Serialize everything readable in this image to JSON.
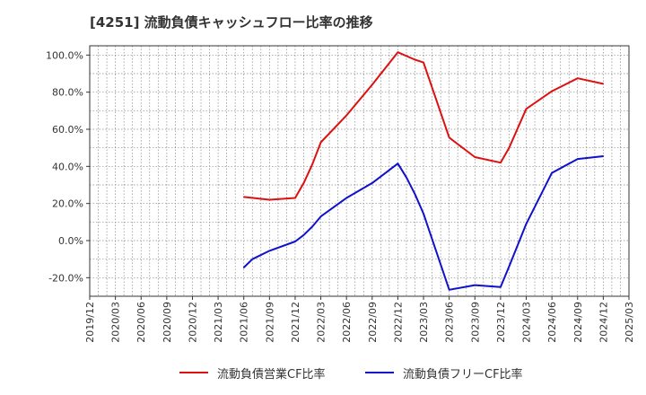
{
  "chart_data": {
    "type": "line",
    "title": "[4251]  流動負債キャッシュフロー比率の推移",
    "x_ticks": [
      "2019/12",
      "2020/03",
      "2020/06",
      "2020/09",
      "2020/12",
      "2021/03",
      "2021/06",
      "2021/09",
      "2021/12",
      "2022/03",
      "2022/06",
      "2022/09",
      "2022/12",
      "2023/03",
      "2023/06",
      "2023/09",
      "2023/12",
      "2024/03",
      "2024/06",
      "2024/09",
      "2024/12",
      "2025/03"
    ],
    "y_ticks": [
      "100.0%",
      "80.0%",
      "60.0%",
      "40.0%",
      "20.0%",
      "0.0%",
      "-20.0%"
    ],
    "ylim": [
      -30,
      105
    ],
    "grid": true,
    "legend_position": "bottom",
    "series": [
      {
        "name": "流動負債営業CF比率",
        "color": "#dd1111",
        "x": [
          "2021/06",
          "2021/09",
          "2021/12",
          "2022/01",
          "2022/02",
          "2022/03",
          "2022/06",
          "2022/09",
          "2022/12",
          "2023/02",
          "2023/03",
          "2023/06",
          "2023/09",
          "2023/12",
          "2024/01",
          "2024/03",
          "2024/06",
          "2024/09",
          "2024/12"
        ],
        "values": [
          23.5,
          22.0,
          23.0,
          31.0,
          41.0,
          53.0,
          67.5,
          84.0,
          101.5,
          97.5,
          96.0,
          55.5,
          45.0,
          42.0,
          50.0,
          71.0,
          80.5,
          87.5,
          84.5
        ]
      },
      {
        "name": "流動負債フリーCF比率",
        "color": "#1111cc",
        "x": [
          "2021/06",
          "2021/07",
          "2021/09",
          "2021/12",
          "2022/01",
          "2022/02",
          "2022/03",
          "2022/06",
          "2022/09",
          "2022/12",
          "2023/01",
          "2023/02",
          "2023/03",
          "2023/06",
          "2023/09",
          "2023/12",
          "2024/01",
          "2024/03",
          "2024/06",
          "2024/09",
          "2024/12"
        ],
        "values": [
          -14.5,
          -10.0,
          -5.5,
          -0.5,
          3.0,
          7.5,
          13.0,
          23.0,
          31.0,
          41.5,
          34.0,
          25.0,
          14.5,
          -26.5,
          -24.0,
          -25.0,
          -14.0,
          9.0,
          36.5,
          44.0,
          45.5
        ]
      }
    ]
  }
}
